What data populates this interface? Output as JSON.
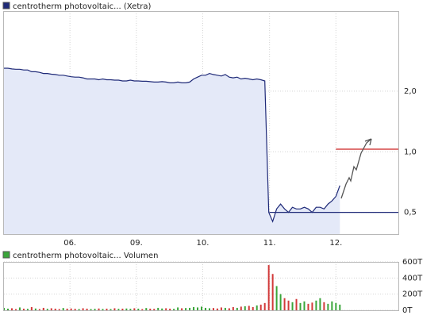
{
  "chart_data": [
    {
      "type": "line",
      "title": "centrotherm photovoltaic... (Xetra)",
      "color": "#1f2a78",
      "fill": "#e4e9f8",
      "log_scale": true,
      "grid": true,
      "x": [
        0,
        1,
        2,
        3,
        4,
        5,
        6,
        7,
        8,
        9,
        10,
        11,
        12,
        13,
        14,
        15,
        16,
        17,
        18,
        19,
        20,
        21,
        22,
        23,
        24,
        25,
        26,
        27,
        28,
        29,
        30,
        31,
        32,
        33,
        34,
        35,
        36,
        37,
        38,
        39,
        40,
        41,
        42,
        43,
        44,
        45,
        46,
        47,
        48,
        49,
        50,
        51,
        52,
        53,
        54,
        55,
        56,
        57,
        58,
        59,
        60,
        61,
        62,
        63,
        64,
        65,
        66,
        67,
        68,
        69,
        70,
        71,
        72,
        73,
        74,
        75,
        76,
        77,
        78,
        79,
        80,
        81,
        82,
        83,
        84,
        85
      ],
      "values": [
        2.6,
        2.6,
        2.58,
        2.57,
        2.57,
        2.55,
        2.55,
        2.5,
        2.5,
        2.48,
        2.45,
        2.45,
        2.43,
        2.42,
        2.4,
        2.4,
        2.38,
        2.36,
        2.35,
        2.35,
        2.33,
        2.3,
        2.3,
        2.3,
        2.28,
        2.3,
        2.28,
        2.28,
        2.27,
        2.27,
        2.25,
        2.25,
        2.27,
        2.25,
        2.25,
        2.24,
        2.24,
        2.23,
        2.22,
        2.22,
        2.23,
        2.22,
        2.2,
        2.2,
        2.22,
        2.2,
        2.2,
        2.22,
        2.3,
        2.35,
        2.4,
        2.4,
        2.45,
        2.42,
        2.4,
        2.38,
        2.42,
        2.35,
        2.33,
        2.35,
        2.3,
        2.32,
        2.3,
        2.28,
        2.3,
        2.28,
        2.25,
        0.5,
        0.45,
        0.52,
        0.55,
        0.52,
        0.5,
        0.53,
        0.52,
        0.52,
        0.53,
        0.52,
        0.5,
        0.53,
        0.53,
        0.52,
        0.55,
        0.57,
        0.6,
        0.68
      ],
      "xlim": [
        0,
        100
      ],
      "xticks": [
        {
          "value": 16.7,
          "label": "06."
        },
        {
          "value": 33.5,
          "label": "09."
        },
        {
          "value": 50.3,
          "label": "10."
        },
        {
          "value": 67.2,
          "label": "11."
        },
        {
          "value": 84.0,
          "label": "12."
        }
      ],
      "ylim": [
        0.39,
        5.0
      ],
      "yticks": [
        {
          "value": 0.5,
          "label": "0,5"
        },
        {
          "value": 1,
          "label": "1,0"
        },
        {
          "value": 2,
          "label": "2,0"
        }
      ],
      "levels": [
        {
          "value": 1.03,
          "from": 84.0,
          "color": "#cc2222"
        },
        {
          "value": 0.5,
          "from": 67.2,
          "color": "#1f2a78"
        }
      ]
    },
    {
      "type": "bar",
      "title": "centrotherm photovoltaic... Volumen",
      "up_color": "#3aa53a",
      "down_color": "#d23a3a",
      "grid": true,
      "x": [
        0,
        1,
        2,
        3,
        4,
        5,
        6,
        7,
        8,
        9,
        10,
        11,
        12,
        13,
        14,
        15,
        16,
        17,
        18,
        19,
        20,
        21,
        22,
        23,
        24,
        25,
        26,
        27,
        28,
        29,
        30,
        31,
        32,
        33,
        34,
        35,
        36,
        37,
        38,
        39,
        40,
        41,
        42,
        43,
        44,
        45,
        46,
        47,
        48,
        49,
        50,
        51,
        52,
        53,
        54,
        55,
        56,
        57,
        58,
        59,
        60,
        61,
        62,
        63,
        64,
        65,
        66,
        67,
        68,
        69,
        70,
        71,
        72,
        73,
        74,
        75,
        76,
        77,
        78,
        79,
        80,
        81,
        82,
        83,
        84,
        85
      ],
      "values": [
        30,
        20,
        25,
        15,
        35,
        20,
        18,
        40,
        22,
        15,
        30,
        18,
        25,
        20,
        15,
        28,
        20,
        22,
        18,
        15,
        25,
        20,
        15,
        18,
        22,
        16,
        20,
        15,
        25,
        18,
        20,
        22,
        18,
        25,
        20,
        15,
        28,
        20,
        18,
        30,
        22,
        25,
        20,
        18,
        35,
        25,
        28,
        30,
        40,
        35,
        45,
        30,
        25,
        28,
        22,
        35,
        30,
        25,
        40,
        30,
        45,
        50,
        55,
        40,
        60,
        70,
        90,
        560,
        450,
        300,
        200,
        150,
        120,
        100,
        140,
        90,
        110,
        80,
        95,
        120,
        150,
        100,
        80,
        110,
        90,
        70
      ],
      "xlim": [
        0,
        100
      ],
      "ylim": [
        0,
        600
      ],
      "yticks": [
        {
          "value": 0,
          "label": "0T"
        },
        {
          "value": 200,
          "label": "200T"
        },
        {
          "value": 400,
          "label": "400T"
        },
        {
          "value": 600,
          "label": "600T"
        }
      ]
    }
  ]
}
